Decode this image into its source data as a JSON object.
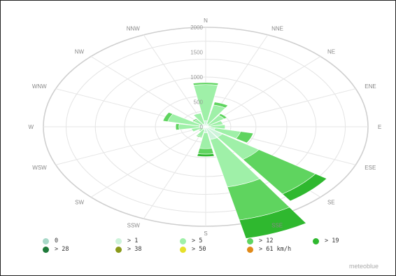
{
  "chart_data": {
    "type": "wind-rose",
    "directions": [
      "N",
      "NNE",
      "NE",
      "ENE",
      "E",
      "ESE",
      "SE",
      "SSE",
      "S",
      "SSW",
      "SW",
      "WSW",
      "W",
      "WNW",
      "NW",
      "NNW"
    ],
    "radial_ticks": [
      500,
      1000,
      1500,
      2000
    ],
    "radial_tick_labels": [
      "500",
      "1000",
      "1500",
      "2000"
    ],
    "rmax": 2000,
    "center_label": "0",
    "grid": true,
    "legend_position": "bottom",
    "speed_classes": [
      {
        "name": "0",
        "color": "#a8d8c8"
      },
      {
        "name": "> 1",
        "color": "#cdf3da"
      },
      {
        "name": "> 5",
        "color": "#9ff0a8"
      },
      {
        "name": "> 12",
        "color": "#5fd45f"
      },
      {
        "name": "> 19",
        "color": "#2fb82f"
      },
      {
        "name": "> 28",
        "color": "#1f7a3a"
      },
      {
        "name": "> 38",
        "color": "#8a9a1a"
      },
      {
        "name": "> 50",
        "color": "#e6e02a"
      },
      {
        "name": "> 61 km/h",
        "color": "#e08a1a"
      }
    ],
    "series": [
      {
        "name": "0",
        "values": [
          0,
          0,
          0,
          0,
          0,
          0,
          0,
          0,
          0,
          0,
          0,
          0,
          0,
          0,
          0,
          0
        ]
      },
      {
        "name": "> 1",
        "values": [
          120,
          60,
          40,
          40,
          60,
          120,
          250,
          260,
          120,
          60,
          40,
          60,
          80,
          80,
          60,
          60
        ]
      },
      {
        "name": "> 5",
        "values": [
          730,
          390,
          240,
          180,
          180,
          320,
          550,
          980,
          320,
          140,
          70,
          120,
          250,
          400,
          120,
          220
        ]
      },
      {
        "name": "> 12",
        "values": [
          40,
          60,
          40,
          0,
          0,
          160,
          850,
          680,
          110,
          20,
          0,
          0,
          40,
          60,
          20,
          0
        ]
      },
      {
        "name": "> 19",
        "values": [
          0,
          0,
          0,
          0,
          0,
          0,
          170,
          380,
          50,
          0,
          0,
          0,
          0,
          0,
          0,
          0
        ]
      },
      {
        "name": "> 28",
        "values": [
          0,
          0,
          0,
          0,
          0,
          0,
          0,
          0,
          0,
          0,
          0,
          0,
          0,
          0,
          0,
          0
        ]
      },
      {
        "name": "> 38",
        "values": [
          0,
          0,
          0,
          0,
          0,
          0,
          0,
          0,
          0,
          0,
          0,
          0,
          0,
          0,
          0,
          0
        ]
      },
      {
        "name": "> 50",
        "values": [
          0,
          0,
          0,
          0,
          0,
          0,
          0,
          0,
          0,
          0,
          0,
          0,
          0,
          0,
          0,
          0
        ]
      },
      {
        "name": "> 61 km/h",
        "values": [
          0,
          0,
          0,
          0,
          0,
          0,
          0,
          0,
          0,
          0,
          0,
          0,
          0,
          0,
          0,
          0
        ]
      }
    ]
  },
  "legend": {
    "row1": [
      "0",
      "> 1",
      "> 5",
      "> 12",
      "> 19"
    ],
    "row2": [
      "> 28",
      "> 38",
      "> 50",
      "> 61 km/h"
    ]
  },
  "credit": "meteoblue"
}
